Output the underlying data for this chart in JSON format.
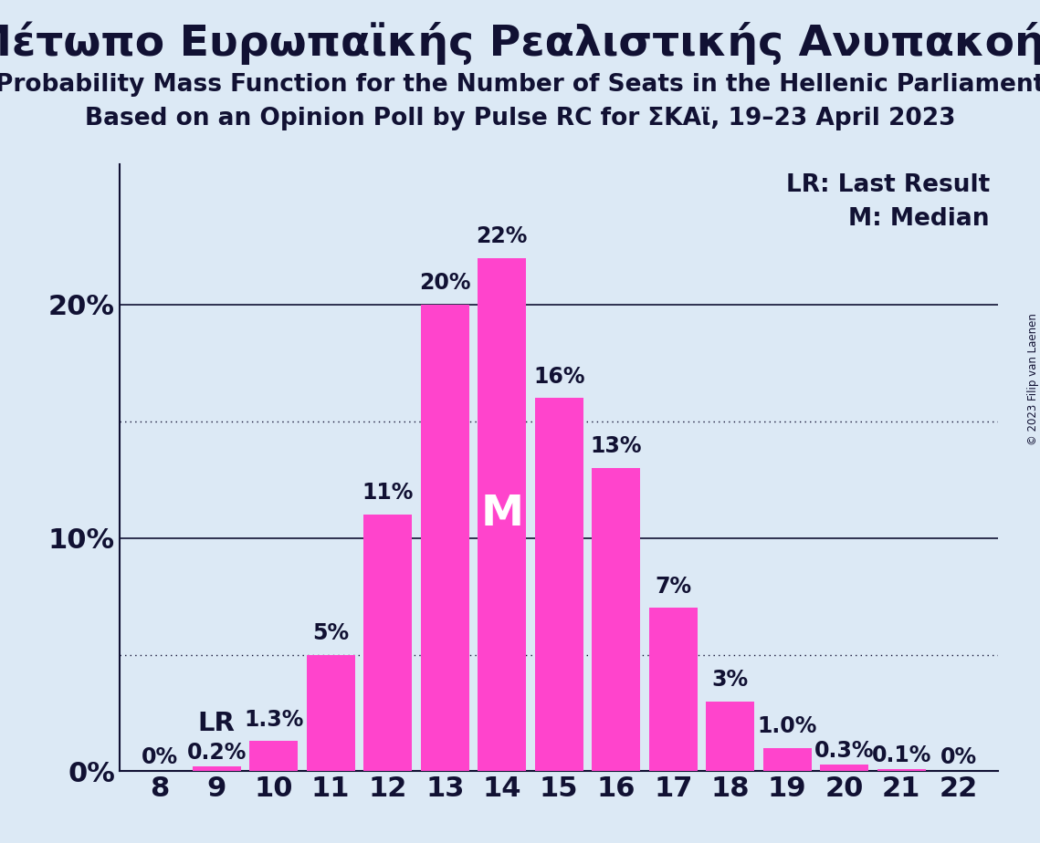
{
  "title_greek": "Μέτωπο Ευρωπαϊκής Ρεαλιστικής Ανυπακοής",
  "subtitle1": "Probability Mass Function for the Number of Seats in the Hellenic Parliament",
  "subtitle2": "Based on an Opinion Poll by Pulse RC for ΣΚΑϊ, 19–23 April 2023",
  "copyright": "© 2023 Filip van Laenen",
  "seats": [
    8,
    9,
    10,
    11,
    12,
    13,
    14,
    15,
    16,
    17,
    18,
    19,
    20,
    21,
    22
  ],
  "probabilities": [
    0.0,
    0.2,
    1.3,
    5.0,
    11.0,
    20.0,
    22.0,
    16.0,
    13.0,
    7.0,
    3.0,
    1.0,
    0.3,
    0.1,
    0.0
  ],
  "bar_color": "#FF44CC",
  "background_color": "#DCE9F5",
  "bar_labels": [
    "0%",
    "0.2%",
    "1.3%",
    "5%",
    "11%",
    "20%",
    "22%",
    "16%",
    "13%",
    "7%",
    "3%",
    "1.0%",
    "0.3%",
    "0.1%",
    "0%"
  ],
  "median_seat": 14,
  "lr_seat": 9,
  "yticks": [
    0,
    10,
    20
  ],
  "dotted_lines": [
    5,
    15
  ],
  "legend_lr": "LR: Last Result",
  "legend_m": "M: Median",
  "title_fontsize": 34,
  "subtitle_fontsize": 19,
  "axis_label_fontsize": 22,
  "bar_label_fontsize": 17,
  "text_color": "#111133"
}
